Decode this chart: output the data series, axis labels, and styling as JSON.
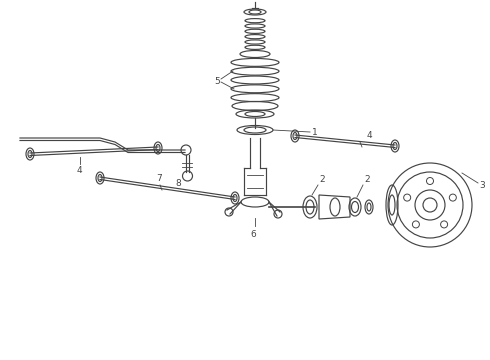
{
  "bg_color": "#ffffff",
  "line_color": "#444444",
  "label_color": "#222222",
  "figsize": [
    4.9,
    3.6
  ],
  "dpi": 100,
  "xlim": [
    0,
    490
  ],
  "ylim": [
    0,
    360
  ]
}
